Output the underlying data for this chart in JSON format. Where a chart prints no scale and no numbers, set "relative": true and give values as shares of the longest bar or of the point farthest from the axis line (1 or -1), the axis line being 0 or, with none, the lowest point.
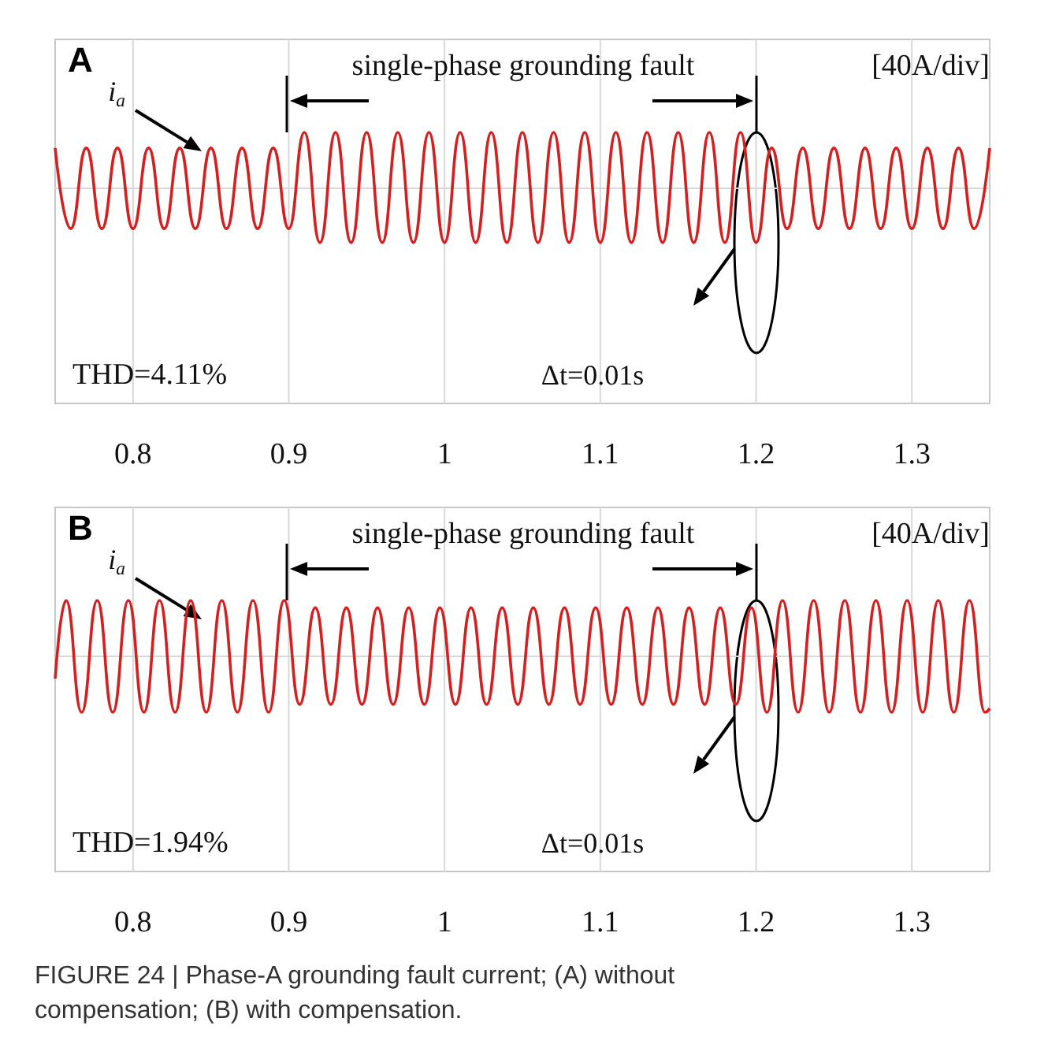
{
  "chart_data": [
    {
      "type": "line",
      "title": "A",
      "relative": true,
      "xlim": [
        0.75,
        1.35
      ],
      "xticks": [
        0.8,
        0.9,
        1,
        1.1,
        1.2,
        1.3
      ],
      "grid": "x",
      "annotations": [
        "i$_{a}$",
        "single-phase grounding fault",
        "[40A/div]",
        "THD=4.11%",
        "Δt=0.01s"
      ],
      "x": [
        0.75,
        0.76,
        0.77,
        0.78,
        0.79,
        0.8,
        0.81,
        0.82,
        0.83,
        0.84,
        0.85,
        0.86,
        0.87,
        0.88,
        0.89,
        0.9,
        0.91,
        0.92,
        0.93,
        0.94,
        0.95,
        0.96,
        0.97,
        0.98,
        0.99,
        1.0,
        1.01,
        1.02,
        1.03,
        1.04,
        1.05,
        1.06,
        1.07,
        1.08,
        1.09,
        1.1,
        1.11,
        1.12,
        1.13,
        1.14,
        1.15,
        1.16,
        1.17,
        1.18,
        1.19,
        1.2,
        1.21,
        1.22,
        1.23,
        1.24,
        1.25,
        1.26,
        1.27,
        1.28,
        1.29,
        1.3,
        1.31,
        1.32,
        1.33,
        1.34,
        1.35
      ],
      "series": [
        {
          "color": "#d42020",
          "values": [
            0.72,
            -0.72,
            0.72,
            -0.72,
            0.72,
            -0.72,
            0.72,
            -0.72,
            0.72,
            -0.72,
            0.72,
            -0.72,
            0.72,
            -0.72,
            0.72,
            -0.72,
            1,
            -0.97,
            1,
            -0.97,
            1,
            -0.97,
            1,
            -0.97,
            1,
            -0.97,
            1,
            -0.97,
            1,
            -0.97,
            1,
            -0.97,
            1,
            -0.97,
            1,
            -0.97,
            1,
            -0.97,
            1,
            -0.97,
            1,
            -0.97,
            1,
            -0.97,
            1,
            -0.97,
            0.72,
            -0.72,
            0.72,
            -0.72,
            0.72,
            -0.72,
            0.72,
            -0.72,
            0.72,
            -0.72,
            0.72,
            -0.72,
            0.72,
            -0.72,
            0.72
          ]
        }
      ]
    },
    {
      "type": "line",
      "title": "B",
      "relative": true,
      "xlim": [
        0.75,
        1.35
      ],
      "xticks": [
        0.8,
        0.9,
        1,
        1.1,
        1.2,
        1.3
      ],
      "grid": "x",
      "annotations": [
        "i$_{a}$",
        "single-phase grounding fault",
        "[40A/div]",
        "THD=1.94%",
        "Δt=0.01s",
        "FIGURE 24 | Phase-A grounding fault current; (A) without compensation; (B) with compensation."
      ],
      "x": [
        0.75,
        0.757,
        0.767,
        0.777,
        0.787,
        0.797,
        0.807,
        0.817,
        0.827,
        0.837,
        0.847,
        0.857,
        0.867,
        0.877,
        0.887,
        0.897,
        0.907,
        0.917,
        0.927,
        0.937,
        0.947,
        0.957,
        0.967,
        0.977,
        0.987,
        0.997,
        1.007,
        1.017,
        1.027,
        1.037,
        1.047,
        1.057,
        1.067,
        1.077,
        1.087,
        1.097,
        1.107,
        1.117,
        1.127,
        1.137,
        1.147,
        1.157,
        1.167,
        1.177,
        1.187,
        1.197,
        1.207,
        1.217,
        1.227,
        1.237,
        1.247,
        1.257,
        1.267,
        1.277,
        1.287,
        1.297,
        1.307,
        1.317,
        1.327,
        1.337,
        1.347,
        1.35
      ],
      "series": [
        {
          "color": "#d42020",
          "values": [
            -0.4,
            1,
            -1,
            1,
            -1,
            1,
            -1,
            1,
            -1,
            1,
            -1,
            1,
            -1,
            1,
            -1,
            1,
            -0.86,
            0.87,
            -0.86,
            0.87,
            -0.86,
            0.87,
            -0.86,
            0.87,
            -0.86,
            0.87,
            -0.86,
            0.87,
            -0.86,
            0.87,
            -0.86,
            0.87,
            -0.86,
            0.87,
            -0.86,
            0.87,
            -0.86,
            0.87,
            -0.86,
            0.87,
            -0.86,
            0.87,
            -0.86,
            0.87,
            -0.86,
            0.87,
            -1,
            1,
            -1,
            1,
            -1,
            1,
            -1,
            1,
            -1,
            1,
            -1,
            1,
            -1,
            1,
            -1,
            -0.93
          ]
        }
      ]
    }
  ]
}
